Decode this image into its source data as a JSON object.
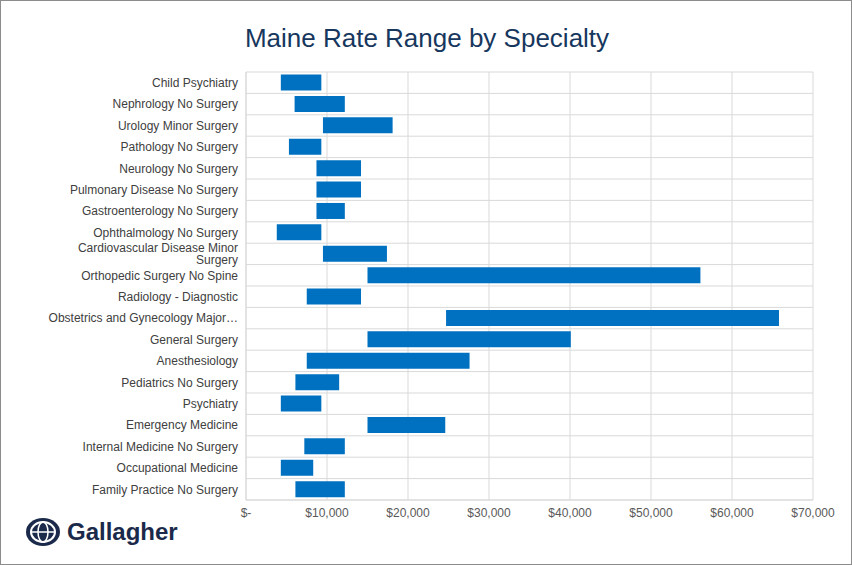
{
  "chart_data": {
    "type": "bar",
    "orientation": "horizontal",
    "title": "Maine Rate Range by Specialty",
    "categories": [
      "Child Psychiatry",
      "Nephrology No Surgery",
      "Urology Minor Surgery",
      "Pathology No Surgery",
      "Neurology No Surgery",
      "Pulmonary Disease No Surgery",
      "Gastroenterology No Surgery",
      "Ophthalmology No Surgery",
      "Cardiovascular Disease Minor Surgery",
      "Orthopedic Surgery No Spine",
      "Radiology - Diagnostic",
      "Obstetrics and Gynecology Major…",
      "General Surgery",
      "Anesthesiology",
      "Pediatrics No Surgery",
      "Psychiatry",
      "Emergency Medicine",
      "Internal Medicine No Surgery",
      "Occupational Medicine",
      "Family Practice No Surgery"
    ],
    "values": [
      [
        4300,
        9300
      ],
      [
        6000,
        12200
      ],
      [
        9500,
        18100
      ],
      [
        5300,
        9300
      ],
      [
        8700,
        14200
      ],
      [
        8700,
        14200
      ],
      [
        8700,
        12200
      ],
      [
        3800,
        9300
      ],
      [
        9500,
        17400
      ],
      [
        15000,
        56100
      ],
      [
        7500,
        14200
      ],
      [
        24700,
        65800
      ],
      [
        15000,
        40100
      ],
      [
        7500,
        27600
      ],
      [
        6100,
        11500
      ],
      [
        4300,
        9300
      ],
      [
        15000,
        24600
      ],
      [
        7200,
        12200
      ],
      [
        4300,
        8300
      ],
      [
        6100,
        12200
      ]
    ],
    "color": "#0070c0",
    "xlim": [
      0,
      70000
    ],
    "xticks": [
      {
        "value": 0,
        "label": "$-"
      },
      {
        "value": 10000,
        "label": "$10,000"
      },
      {
        "value": 20000,
        "label": "$20,000"
      },
      {
        "value": 30000,
        "label": "$30,000"
      },
      {
        "value": 40000,
        "label": "$40,000"
      },
      {
        "value": 50000,
        "label": "$50,000"
      },
      {
        "value": 60000,
        "label": "$60,000"
      },
      {
        "value": 70000,
        "label": "$70,000"
      }
    ],
    "grid": true,
    "annotations": [
      "Gallagher"
    ]
  }
}
